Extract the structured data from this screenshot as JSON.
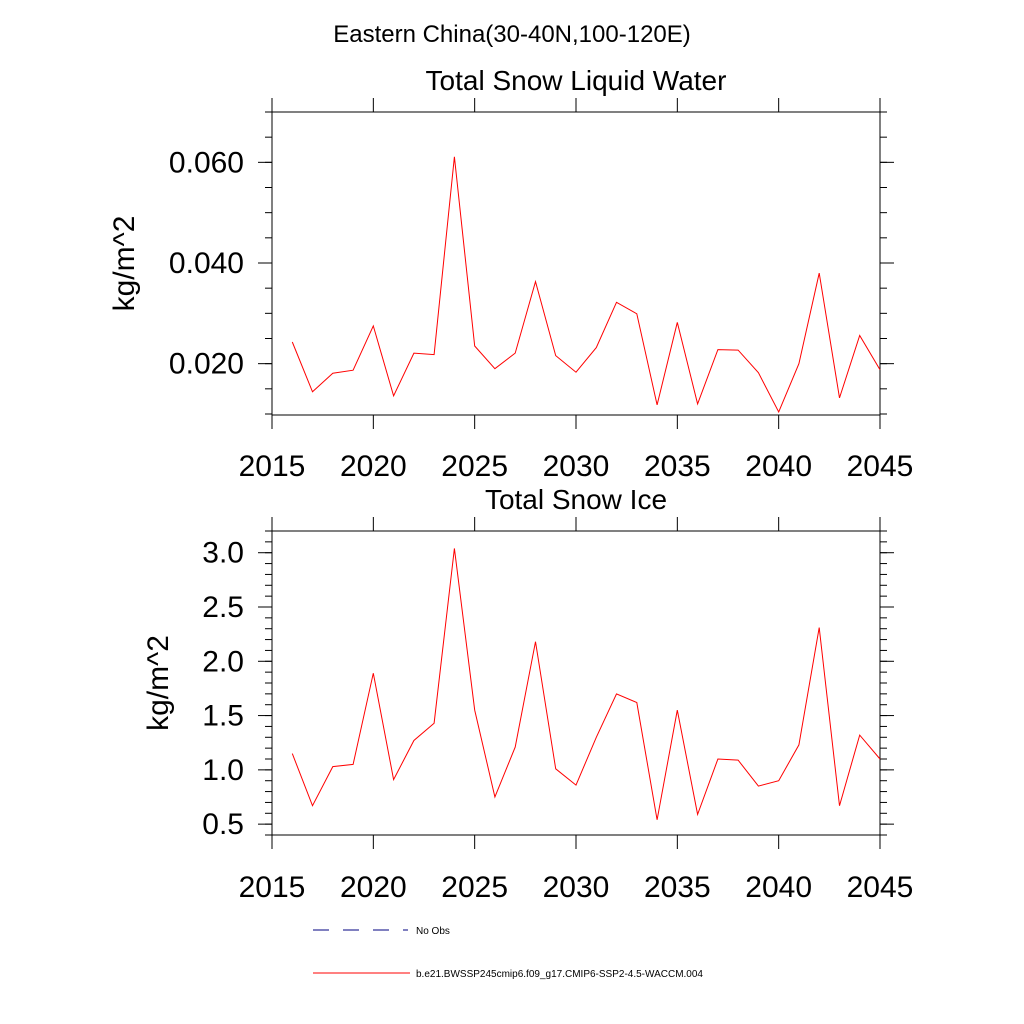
{
  "page": {
    "main_title": "Eastern China(30-40N,100-120E)"
  },
  "chart_data": [
    {
      "type": "line",
      "title": "Total Snow Liquid Water",
      "xlabel": "",
      "ylabel": "kg/m^2",
      "xlim": [
        2015,
        2045
      ],
      "ylim": [
        0.0098,
        0.07
      ],
      "xticks": [
        2015,
        2020,
        2025,
        2030,
        2035,
        2040,
        2045
      ],
      "xtick_labels": [
        "2015",
        "2020",
        "2025",
        "2030",
        "2035",
        "2040",
        "2045"
      ],
      "yticks": [
        0.02,
        0.04,
        0.06
      ],
      "ytick_labels": [
        "0.020",
        "0.040",
        "0.060"
      ],
      "y_minor_step": 0.005,
      "grid": false,
      "series": [
        {
          "name": "b.e21.BWSSP245cmip6.f09_g17.CMIP6-SSP2-4.5-WACCM.004",
          "color": "#ff0000",
          "x": [
            2016,
            2017,
            2018,
            2019,
            2020,
            2021,
            2022,
            2023,
            2024,
            2025,
            2026,
            2027,
            2028,
            2029,
            2030,
            2031,
            2032,
            2033,
            2034,
            2035,
            2036,
            2037,
            2038,
            2039,
            2040,
            2041,
            2042,
            2043,
            2044,
            2045
          ],
          "y": [
            0.0243,
            0.0144,
            0.0181,
            0.0187,
            0.0275,
            0.0136,
            0.0221,
            0.0218,
            0.0611,
            0.0235,
            0.019,
            0.0221,
            0.0363,
            0.0216,
            0.0183,
            0.0232,
            0.0322,
            0.0299,
            0.0118,
            0.0282,
            0.012,
            0.0228,
            0.0227,
            0.0182,
            0.0104,
            0.02,
            0.038,
            0.0132,
            0.0256,
            0.0188
          ]
        }
      ]
    },
    {
      "type": "line",
      "title": "Total Snow Ice",
      "xlabel": "",
      "ylabel": "kg/m^2",
      "xlim": [
        2015,
        2045
      ],
      "ylim": [
        0.4,
        3.2
      ],
      "xticks": [
        2015,
        2020,
        2025,
        2030,
        2035,
        2040,
        2045
      ],
      "xtick_labels": [
        "2015",
        "2020",
        "2025",
        "2030",
        "2035",
        "2040",
        "2045"
      ],
      "yticks": [
        0.5,
        1.0,
        1.5,
        2.0,
        2.5,
        3.0
      ],
      "ytick_labels": [
        "0.5",
        "1.0",
        "1.5",
        "2.0",
        "2.5",
        "3.0"
      ],
      "y_minor_step": 0.1,
      "grid": false,
      "series": [
        {
          "name": "b.e21.BWSSP245cmip6.f09_g17.CMIP6-SSP2-4.5-WACCM.004",
          "color": "#ff0000",
          "x": [
            2016,
            2017,
            2018,
            2019,
            2020,
            2021,
            2022,
            2023,
            2024,
            2025,
            2026,
            2027,
            2028,
            2029,
            2030,
            2031,
            2032,
            2033,
            2034,
            2035,
            2036,
            2037,
            2038,
            2039,
            2040,
            2041,
            2042,
            2043,
            2044,
            2045
          ],
          "y": [
            1.15,
            0.67,
            1.03,
            1.05,
            1.89,
            0.91,
            1.27,
            1.43,
            3.04,
            1.55,
            0.75,
            1.21,
            2.18,
            1.01,
            0.86,
            1.3,
            1.7,
            1.62,
            0.54,
            1.55,
            0.59,
            1.1,
            1.09,
            0.85,
            0.9,
            1.23,
            2.31,
            0.67,
            1.32,
            1.1
          ]
        }
      ]
    }
  ],
  "legend": {
    "position": "bottom",
    "items": [
      {
        "label": "No Obs",
        "style": "dashed",
        "color": "#000080"
      },
      {
        "label": "b.e21.BWSSP245cmip6.f09_g17.CMIP6-SSP2-4.5-WACCM.004",
        "style": "solid",
        "color": "#ff0000"
      }
    ]
  }
}
